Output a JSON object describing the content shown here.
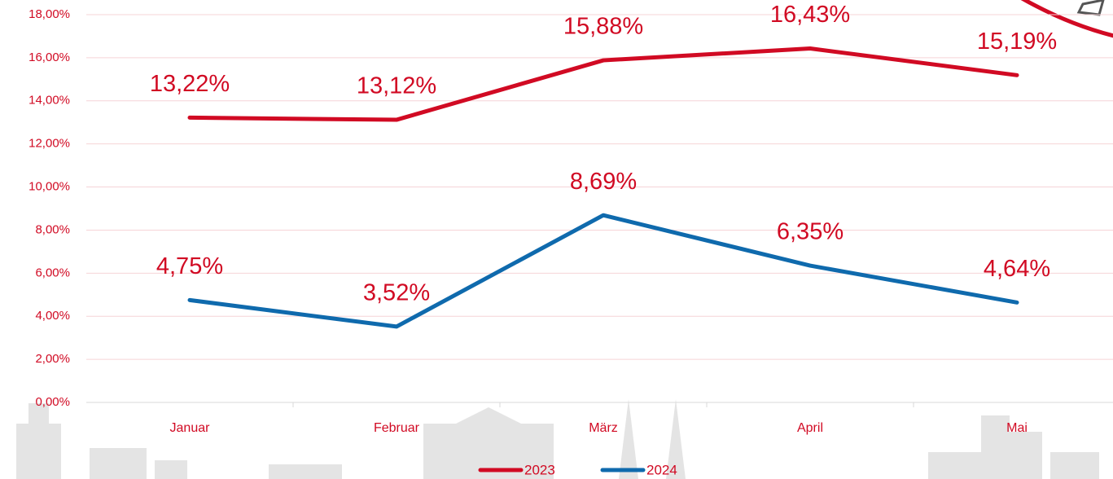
{
  "chart_data": {
    "type": "line",
    "categories": [
      "Januar",
      "Februar",
      "März",
      "April",
      "Mai"
    ],
    "series": [
      {
        "name": "2023",
        "color": "#d10a23",
        "values": [
          13.22,
          13.12,
          15.88,
          16.43,
          15.19
        ],
        "value_labels": [
          "13,22%",
          "13,12%",
          "15,88%",
          "16,43%",
          "15,19%"
        ]
      },
      {
        "name": "2024",
        "color": "#0f6aad",
        "values": [
          4.75,
          3.52,
          8.69,
          6.35,
          4.64
        ],
        "value_labels": [
          "4,75%",
          "3,52%",
          "8,69%",
          "6,35%",
          "4,64%"
        ]
      }
    ],
    "ylim": [
      0,
      18
    ],
    "yticks": [
      {
        "value": 0,
        "label": "0,00%"
      },
      {
        "value": 2,
        "label": "2,00%"
      },
      {
        "value": 4,
        "label": "4,00%"
      },
      {
        "value": 6,
        "label": "6,00%"
      },
      {
        "value": 8,
        "label": "8,00%"
      },
      {
        "value": 10,
        "label": "10,00%"
      },
      {
        "value": 12,
        "label": "12,00%"
      },
      {
        "value": 14,
        "label": "14,00%"
      },
      {
        "value": 16,
        "label": "16,00%"
      },
      {
        "value": 18,
        "label": "18,00%"
      }
    ],
    "grid": true,
    "legend": "bottom"
  }
}
